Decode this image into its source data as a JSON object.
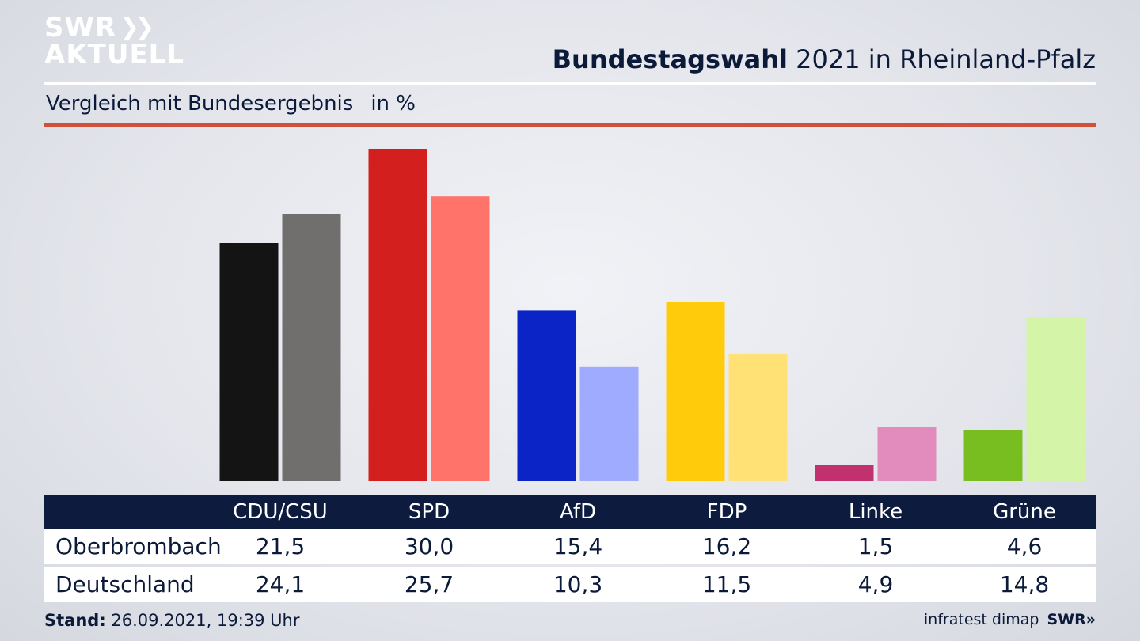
{
  "branding": {
    "logo_line1": "SWR",
    "logo_line2": "AKTUELL",
    "footer_brand": "SWR»"
  },
  "header": {
    "title_bold": "Bundestagswahl",
    "title_rest": " 2021 in Rheinland-Pfalz",
    "subtitle": "Vergleich mit Bundesergebnis",
    "unit": "in %"
  },
  "footer": {
    "stand_label": "Stand:",
    "stand_value": " 26.09.2021, 19:39 Uhr",
    "source": "infratest dimap"
  },
  "chart_data": {
    "type": "bar",
    "title": "Bundestagswahl 2021 in Rheinland-Pfalz",
    "subtitle": "Vergleich mit Bundesergebnis",
    "ylabel": "in %",
    "ylim": [
      0,
      30
    ],
    "categories": [
      "CDU/CSU",
      "SPD",
      "AfD",
      "FDP",
      "Linke",
      "Grüne"
    ],
    "series": [
      {
        "name": "Oberbrombach",
        "values": [
          21.5,
          30.0,
          15.4,
          16.2,
          1.5,
          4.6
        ],
        "labels": [
          "21,5",
          "30,0",
          "15,4",
          "16,2",
          "1,5",
          "4,6"
        ],
        "colors": [
          "#141414",
          "#d41f1f",
          "#0a24c6",
          "#ffcb0a",
          "#c1316f",
          "#78be20"
        ]
      },
      {
        "name": "Deutschland",
        "values": [
          24.1,
          25.7,
          10.3,
          11.5,
          4.9,
          14.8
        ],
        "labels": [
          "24,1",
          "25,7",
          "10,3",
          "11,5",
          "4,9",
          "14,8"
        ],
        "colors": [
          "#716f6d",
          "#ff736b",
          "#9eabff",
          "#ffe176",
          "#e18cbd",
          "#d4f5a8"
        ]
      }
    ]
  }
}
